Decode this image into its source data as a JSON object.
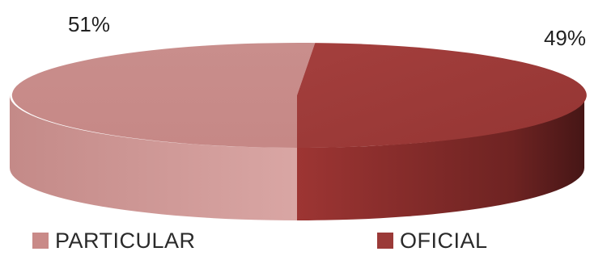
{
  "chart_data": {
    "type": "pie",
    "style": "3d",
    "title": "",
    "slices": [
      {
        "label": "PARTICULAR",
        "value": 51,
        "display": "51%",
        "color": "#c98a88"
      },
      {
        "label": "OFICIAL",
        "value": 49,
        "display": "49%",
        "color": "#9b3a38"
      }
    ],
    "legend_position": "bottom"
  }
}
